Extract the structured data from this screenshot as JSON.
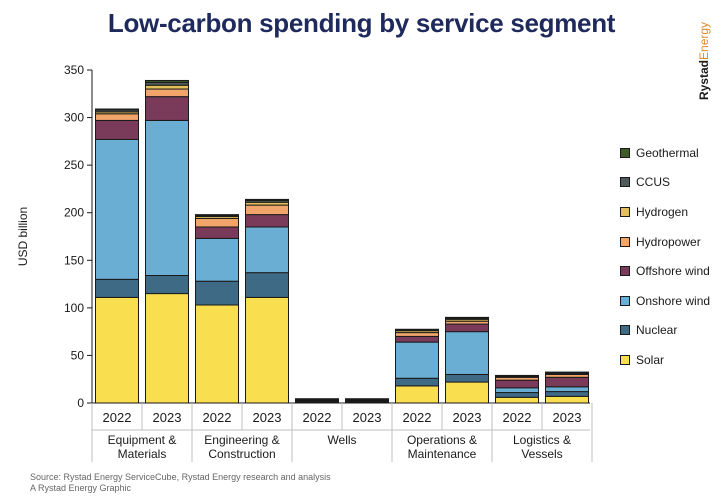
{
  "title": "Low-carbon spending by service segment",
  "brand": {
    "part1": "Rystad",
    "part2": "Energy"
  },
  "footer": {
    "source": "Source: Rystad Energy ServiceCube, Rystad Energy research and analysis",
    "credit": "A Rystad Energy Graphic"
  },
  "chart_data": {
    "type": "bar",
    "stacked": true,
    "ylabel": "USD billion",
    "ylim": [
      0,
      350
    ],
    "yticks": [
      0,
      50,
      100,
      150,
      200,
      250,
      300,
      350
    ],
    "groups": [
      {
        "name": "Equipment & Materials",
        "lines": [
          "Equipment &",
          "Materials"
        ]
      },
      {
        "name": "Engineering & Construction",
        "lines": [
          "Engineering &",
          "Construction"
        ]
      },
      {
        "name": "Wells",
        "lines": [
          "Wells"
        ]
      },
      {
        "name": "Operations & Maintenance",
        "lines": [
          "Operations &",
          "Maintenance"
        ]
      },
      {
        "name": "Logistics & Vessels",
        "lines": [
          "Logistics &",
          "Vessels"
        ]
      }
    ],
    "years": [
      "2022",
      "2023"
    ],
    "series": [
      {
        "name": "Solar",
        "color": "#f9df4f",
        "values": [
          [
            111,
            115
          ],
          [
            103,
            111
          ],
          [
            1,
            1
          ],
          [
            18,
            22
          ],
          [
            6,
            7
          ]
        ]
      },
      {
        "name": "Nuclear",
        "color": "#3f6a86",
        "values": [
          [
            19,
            19
          ],
          [
            25,
            26
          ],
          [
            0.5,
            0.5
          ],
          [
            8,
            8
          ],
          [
            5,
            5
          ]
        ]
      },
      {
        "name": "Onshore wind",
        "color": "#6aaed4",
        "values": [
          [
            147,
            163
          ],
          [
            45,
            48
          ],
          [
            0.5,
            0.5
          ],
          [
            38,
            45
          ],
          [
            5,
            5
          ]
        ]
      },
      {
        "name": "Offshore wind",
        "color": "#7a3a5a",
        "values": [
          [
            20,
            25
          ],
          [
            12,
            13
          ],
          [
            0.5,
            0.5
          ],
          [
            6,
            8
          ],
          [
            8,
            10
          ]
        ]
      },
      {
        "name": "Hydropower",
        "color": "#f2a56a",
        "values": [
          [
            7,
            8
          ],
          [
            9,
            10
          ],
          [
            0.5,
            0.5
          ],
          [
            4,
            3
          ],
          [
            3,
            3
          ]
        ]
      },
      {
        "name": "Hydrogen",
        "color": "#e3bf5a",
        "values": [
          [
            2,
            4
          ],
          [
            2,
            3
          ],
          [
            0.5,
            0.5
          ],
          [
            2,
            2
          ],
          [
            1,
            1
          ]
        ]
      },
      {
        "name": "CCUS",
        "color": "#4f5a5a",
        "values": [
          [
            2,
            3
          ],
          [
            1,
            2
          ],
          [
            0.5,
            0.5
          ],
          [
            1,
            1
          ],
          [
            0.5,
            1
          ]
        ]
      },
      {
        "name": "Geothermal",
        "color": "#405a2a",
        "values": [
          [
            1,
            2
          ],
          [
            1,
            1
          ],
          [
            0.5,
            0.5
          ],
          [
            0.5,
            1
          ],
          [
            0.5,
            0.5
          ]
        ]
      }
    ],
    "legend_order": [
      "Geothermal",
      "CCUS",
      "Hydrogen",
      "Hydropower",
      "Offshore wind",
      "Onshore wind",
      "Nuclear",
      "Solar"
    ],
    "legend_position": "right"
  }
}
